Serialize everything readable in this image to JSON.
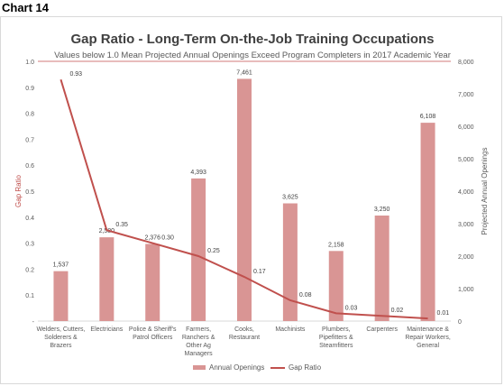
{
  "chart_label": "Chart 14",
  "chart_data": {
    "type": "bar",
    "title": "Gap Ratio - Long-Term On-the-Job Training Occupations",
    "subtitle": "Values below 1.0 Mean Projected Annual Openings Exceed Program Completers in 2017 Academic Year",
    "ylabel_left": "Gap Ratio",
    "ylabel_right": "Projected Annual Openings",
    "categories": [
      [
        "Welders, Cutters,",
        "Solderers &",
        "Brazers"
      ],
      [
        "Electricians"
      ],
      [
        "Police & Sheriff's",
        "Patrol Officers"
      ],
      [
        "Farmers,",
        "Ranchers &",
        "Other Ag",
        "Managers"
      ],
      [
        "Cooks,",
        "Restaurant"
      ],
      [
        "Machinists"
      ],
      [
        "Plumbers,",
        "Pipefitters &",
        "Steamfitters"
      ],
      [
        "Carpenters"
      ],
      [
        "Maintenance &",
        "Repair Workers,",
        "General"
      ]
    ],
    "series": [
      {
        "name": "Annual Openings",
        "type": "bar",
        "axis": "right",
        "color": "#d99594",
        "values": [
          1537,
          2580,
          2376,
          4393,
          7461,
          3625,
          2158,
          3250,
          6108
        ],
        "labels": [
          "1,537",
          "2,580",
          "2,376",
          "4,393",
          "7,461",
          "3,625",
          "2,158",
          "3,250",
          "6,108"
        ]
      },
      {
        "name": "Gap Ratio",
        "type": "line",
        "axis": "left",
        "color": "#c0504d",
        "values": [
          0.93,
          0.35,
          0.3,
          0.25,
          0.17,
          0.08,
          0.03,
          0.02,
          0.01
        ],
        "labels": [
          "0.93",
          "0.35",
          "0.30",
          "0.25",
          "0.17",
          "0.08",
          "0.03",
          "0.02",
          "0.01"
        ]
      }
    ],
    "left_axis": {
      "min": 0,
      "max": 1.0,
      "ticks": [
        0,
        0.1,
        0.2,
        0.3,
        0.4,
        0.5,
        0.6,
        0.7,
        0.8,
        0.9,
        1.0
      ],
      "tick_labels": [
        "-",
        "0.1",
        "0.2",
        "0.3",
        "0.4",
        "0.5",
        "0.6",
        "0.7",
        "0.8",
        "0.9",
        "1.0"
      ]
    },
    "right_axis": {
      "min": 0,
      "max": 8000,
      "ticks": [
        0,
        1000,
        2000,
        3000,
        4000,
        5000,
        6000,
        7000,
        8000
      ],
      "tick_labels": [
        "0",
        "1,000",
        "2,000",
        "3,000",
        "4,000",
        "5,000",
        "6,000",
        "7,000",
        "8,000"
      ]
    },
    "reference_line": {
      "value": 1.0,
      "color": "#d99594"
    },
    "legend_position": "bottom",
    "grid": false
  }
}
